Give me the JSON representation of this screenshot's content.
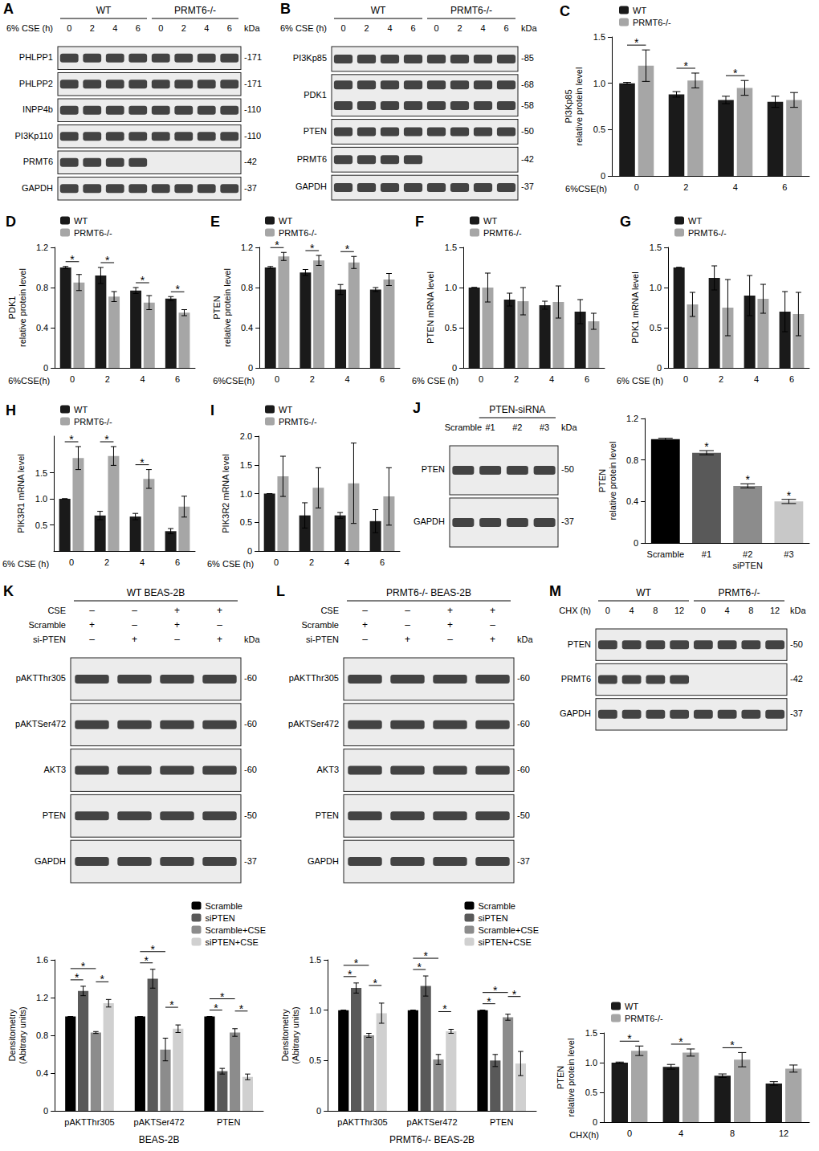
{
  "chart_data": [
    {
      "panel": "C",
      "type": "bar",
      "y_label": [
        "PI3Kp85",
        "relative protein level"
      ],
      "x_label": "6%CSE(h)",
      "categories": [
        "0",
        "2",
        "4",
        "6"
      ],
      "series": [
        {
          "name": "WT",
          "color": "#1a1a1a",
          "values": [
            1.0,
            0.88,
            0.82,
            0.8
          ],
          "errors": [
            0.01,
            0.03,
            0.04,
            0.06
          ]
        },
        {
          "name": "PRMT6-/-",
          "color": "#a6a6a6",
          "values": [
            1.19,
            1.03,
            0.95,
            0.82
          ],
          "errors": [
            0.17,
            0.08,
            0.08,
            0.08
          ]
        }
      ],
      "ylim": [
        0,
        1.5
      ],
      "yticks": [
        0,
        0.5,
        {
          "value": 1,
          "label": "1.0"
        },
        1.5
      ],
      "legend": "top-left",
      "significant": [
        0,
        1,
        2
      ],
      "annotation": "*"
    },
    {
      "panel": "D",
      "type": "bar",
      "y_label": [
        "PDK1",
        "relative protein level"
      ],
      "x_label": "6%CSE(h)",
      "categories": [
        "0",
        "2",
        "4",
        "6"
      ],
      "series": [
        {
          "name": "WT",
          "color": "#1a1a1a",
          "values": [
            1.0,
            0.92,
            0.77,
            0.69
          ],
          "errors": [
            0.01,
            0.08,
            0.03,
            0.02
          ]
        },
        {
          "name": "PRMT6-/-",
          "color": "#a6a6a6",
          "values": [
            0.85,
            0.71,
            0.65,
            0.55
          ],
          "errors": [
            0.08,
            0.05,
            0.07,
            0.03
          ]
        }
      ],
      "ylim": [
        0,
        1.2
      ],
      "yticks": [
        0,
        0.4,
        0.8,
        1.2
      ],
      "legend": "top-left",
      "significant": [
        0,
        1,
        2,
        3
      ],
      "annotation": "*"
    },
    {
      "panel": "E",
      "type": "bar",
      "y_label": [
        "PTEN",
        "relative protein level"
      ],
      "x_label": "6%CSE(h)",
      "categories": [
        "0",
        "2",
        "4",
        "6"
      ],
      "series": [
        {
          "name": "WT",
          "color": "#1a1a1a",
          "values": [
            1.0,
            0.95,
            0.78,
            0.78
          ],
          "errors": [
            0.01,
            0.03,
            0.05,
            0.02
          ]
        },
        {
          "name": "PRMT6-/-",
          "color": "#a6a6a6",
          "values": [
            1.11,
            1.07,
            1.05,
            0.88
          ],
          "errors": [
            0.04,
            0.05,
            0.06,
            0.06
          ]
        }
      ],
      "ylim": [
        0,
        1.2
      ],
      "yticks": [
        0,
        0.4,
        0.8,
        1.2
      ],
      "legend": "top-left",
      "significant": [
        0,
        1,
        2
      ],
      "annotation": "*"
    },
    {
      "panel": "F",
      "type": "bar",
      "y_label": [
        "PTEN mRNA level"
      ],
      "x_label": "6% CSE (h)",
      "categories": [
        "0",
        "2",
        "4",
        "6"
      ],
      "series": [
        {
          "name": "WT",
          "color": "#1a1a1a",
          "values": [
            1.0,
            0.85,
            0.78,
            0.7
          ],
          "errors": [
            0.0,
            0.08,
            0.05,
            0.15
          ]
        },
        {
          "name": "PRMT6-/-",
          "color": "#a6a6a6",
          "values": [
            1.0,
            0.83,
            0.82,
            0.58
          ],
          "errors": [
            0.18,
            0.17,
            0.2,
            0.1
          ]
        }
      ],
      "ylim": [
        0,
        1.5
      ],
      "yticks": [
        0,
        0.5,
        {
          "value": 1,
          "label": "1.0"
        },
        1.5
      ],
      "legend": "top-left"
    },
    {
      "panel": "G",
      "type": "bar",
      "y_label": [
        "PDK1 mRNA level"
      ],
      "x_label": "6% CSE (h)",
      "categories": [
        "0",
        "2",
        "4",
        "6"
      ],
      "series": [
        {
          "name": "WT",
          "color": "#1a1a1a",
          "values": [
            1.25,
            1.12,
            0.9,
            0.7
          ],
          "errors": [
            0.0,
            0.15,
            0.25,
            0.25
          ]
        },
        {
          "name": "PRMT6-/-",
          "color": "#a6a6a6",
          "values": [
            0.79,
            0.75,
            0.86,
            0.67
          ],
          "errors": [
            0.15,
            0.35,
            0.18,
            0.27
          ]
        }
      ],
      "ylim": [
        0,
        1.5
      ],
      "yticks": [
        0,
        0.5,
        {
          "value": 1,
          "label": "1.0"
        },
        1.5
      ],
      "legend": "top-left"
    },
    {
      "panel": "H",
      "type": "bar",
      "y_label": [
        "PIK3R1 mRNA level"
      ],
      "x_label": "6% CSE (h)",
      "categories": [
        "0",
        "2",
        "4",
        "6"
      ],
      "series": [
        {
          "name": "WT",
          "color": "#1a1a1a",
          "values": [
            1.0,
            0.68,
            0.66,
            0.38
          ],
          "errors": [
            0.0,
            0.08,
            0.06,
            0.05
          ]
        },
        {
          "name": "PRMT6-/-",
          "color": "#a6a6a6",
          "values": [
            1.78,
            1.82,
            1.38,
            0.85
          ],
          "errors": [
            0.22,
            0.18,
            0.18,
            0.2
          ]
        }
      ],
      "ylim": [
        0,
        2.2
      ],
      "yticks": [
        0.5,
        {
          "value": 1,
          "label": "1.0"
        },
        1.5
      ],
      "legend": "top-left",
      "significant": [
        0,
        1,
        2
      ],
      "annotation": "*"
    },
    {
      "panel": "I",
      "type": "bar",
      "y_label": [
        "PIK3R2 mRNA level"
      ],
      "x_label": "6% CSE (h)",
      "categories": [
        "0",
        "2",
        "4",
        "6"
      ],
      "series": [
        {
          "name": "WT",
          "color": "#1a1a1a",
          "values": [
            1.0,
            0.62,
            0.62,
            0.52
          ],
          "errors": [
            0.0,
            0.22,
            0.05,
            0.2
          ]
        },
        {
          "name": "PRMT6-/-",
          "color": "#a6a6a6",
          "values": [
            1.3,
            1.1,
            1.18,
            0.95
          ],
          "errors": [
            0.35,
            0.35,
            0.7,
            0.5
          ]
        }
      ],
      "ylim": [
        0,
        2.0
      ],
      "yticks": [
        0,
        0.5,
        {
          "value": 1,
          "label": "1.0"
        },
        1.5,
        {
          "value": 2,
          "label": "2.0"
        }
      ],
      "legend": "top-left"
    },
    {
      "panel": "J",
      "type": "bar",
      "y_label": [
        "PTEN",
        "relative protein level"
      ],
      "categories": [
        "Scramble",
        "#1",
        "#2",
        "#3"
      ],
      "group_label": {
        "text": "siPTEN",
        "span": [
          1,
          3
        ]
      },
      "series": [
        {
          "colors": [
            "#000000",
            "#595959",
            "#8c8c8c",
            "#c8c8c8"
          ],
          "values": [
            1.0,
            0.87,
            0.55,
            0.4
          ],
          "errors": [
            0.01,
            0.02,
            0.02,
            0.02
          ]
        }
      ],
      "ylim": [
        0,
        1.2
      ],
      "yticks": [
        0,
        0.4,
        0.8,
        1.2
      ],
      "significant": [
        1,
        2,
        3
      ],
      "annotation": "*"
    },
    {
      "panel": "K",
      "type": "bar",
      "y_label": [
        "Densitometry",
        "(Abitrary units)"
      ],
      "x_label": "BEAS-2B",
      "categories": [
        "pAKTThr305",
        "pAKTSer472",
        "PTEN"
      ],
      "series": [
        {
          "name": "Scramble",
          "color": "#000000",
          "values": [
            1.0,
            1.0,
            1.0
          ],
          "errors": [
            0.0,
            0.0,
            0.0
          ]
        },
        {
          "name": "siPTEN",
          "color": "#595959",
          "values": [
            1.27,
            1.4,
            0.42
          ],
          "errors": [
            0.05,
            0.1,
            0.03
          ]
        },
        {
          "name": "Scramble+CSE",
          "color": "#8c8c8c",
          "values": [
            0.83,
            0.65,
            0.83
          ],
          "errors": [
            0.01,
            0.12,
            0.04
          ]
        },
        {
          "name": "siPTEN+CSE",
          "color": "#d0d0d0",
          "values": [
            1.14,
            0.87,
            0.36
          ],
          "errors": [
            0.04,
            0.04,
            0.03
          ]
        }
      ],
      "ylim": [
        0,
        1.6
      ],
      "yticks": [
        0,
        0.4,
        0.8,
        1.2,
        1.6
      ],
      "legend": "top-right",
      "comparisons": [
        [
          0,
          0,
          1
        ],
        [
          0,
          0,
          2
        ],
        [
          0,
          2,
          3
        ],
        [
          1,
          0,
          1
        ],
        [
          1,
          0,
          2
        ],
        [
          1,
          2,
          3
        ],
        [
          2,
          0,
          1
        ],
        [
          2,
          0,
          2
        ],
        [
          2,
          2,
          3
        ]
      ],
      "annotation": "*"
    },
    {
      "panel": "L",
      "type": "bar",
      "y_label": [
        "Densitometry",
        "(Abitrary units)"
      ],
      "x_label": "PRMT6-/- BEAS-2B",
      "categories": [
        "pAKTThr305",
        "pAKTSer472",
        "PTEN"
      ],
      "series": [
        {
          "name": "Scramble",
          "color": "#000000",
          "values": [
            1.0,
            1.0,
            1.0
          ],
          "errors": [
            0.0,
            0.0,
            0.0
          ]
        },
        {
          "name": "siPTEN",
          "color": "#595959",
          "values": [
            1.22,
            1.24,
            0.5
          ],
          "errors": [
            0.05,
            0.1,
            0.06
          ]
        },
        {
          "name": "Scramble+CSE",
          "color": "#8c8c8c",
          "values": [
            0.75,
            0.51,
            0.93
          ],
          "errors": [
            0.02,
            0.05,
            0.03
          ]
        },
        {
          "name": "siPTEN+CSE",
          "color": "#d0d0d0",
          "values": [
            0.97,
            0.79,
            0.47
          ],
          "errors": [
            0.1,
            0.02,
            0.12
          ]
        }
      ],
      "ylim": [
        0,
        1.5
      ],
      "yticks": [
        0,
        0.5,
        {
          "value": 1,
          "label": "1.0"
        },
        1.5
      ],
      "legend": "top-right",
      "comparisons": [
        [
          0,
          0,
          1
        ],
        [
          0,
          0,
          2
        ],
        [
          0,
          2,
          3
        ],
        [
          1,
          0,
          1
        ],
        [
          1,
          0,
          2
        ],
        [
          1,
          2,
          3
        ],
        [
          2,
          0,
          1
        ],
        [
          2,
          0,
          2
        ],
        [
          2,
          2,
          3
        ]
      ],
      "annotation": "*"
    },
    {
      "panel": "M",
      "type": "bar",
      "y_label": [
        "PTEN",
        "relative protein level"
      ],
      "x_label": "CHX(h)",
      "categories": [
        "0",
        "4",
        "8",
        "12"
      ],
      "series": [
        {
          "name": "WT",
          "color": "#1a1a1a",
          "values": [
            1.0,
            0.93,
            0.78,
            0.65
          ],
          "errors": [
            0.01,
            0.04,
            0.03,
            0.03
          ]
        },
        {
          "name": "PRMT6-/-",
          "color": "#a6a6a6",
          "values": [
            1.2,
            1.17,
            1.05,
            0.9
          ],
          "errors": [
            0.08,
            0.06,
            0.12,
            0.06
          ]
        }
      ],
      "ylim": [
        0,
        1.5
      ],
      "yticks": [
        0,
        0.5,
        {
          "value": 1,
          "label": "1.0"
        },
        1.5
      ],
      "legend": "top-left",
      "significant": [
        0,
        1,
        2
      ],
      "annotation": "*"
    }
  ],
  "blots": [
    {
      "panel": "A",
      "groups": [
        {
          "label": "WT",
          "span": [
            0,
            3
          ]
        },
        {
          "label": "PRMT6-/-",
          "span": [
            4,
            7
          ]
        }
      ],
      "header": "6% CSE (h)",
      "lanes": [
        "0",
        "2",
        "4",
        "6",
        "0",
        "2",
        "4",
        "6"
      ],
      "unit": "kDa",
      "rows": [
        {
          "label": "PHLPP1",
          "kda": [
            "-171"
          ]
        },
        {
          "label": "PHLPP2",
          "kda": [
            "-171"
          ]
        },
        {
          "label": "INPP4b",
          "kda": [
            "-110"
          ]
        },
        {
          "label": "PI3Kp110",
          "kda": [
            "-110"
          ]
        },
        {
          "label": "PRMT6",
          "kda": [
            "-42"
          ],
          "empty": [
            4,
            5,
            6,
            7
          ]
        },
        {
          "label": "GAPDH",
          "kda": [
            "-37"
          ]
        }
      ]
    },
    {
      "panel": "B",
      "groups": [
        {
          "label": "WT",
          "span": [
            0,
            3
          ]
        },
        {
          "label": "PRMT6-/-",
          "span": [
            4,
            7
          ]
        }
      ],
      "header": "6% CSE (h)",
      "lanes": [
        "0",
        "2",
        "4",
        "6",
        "0",
        "2",
        "4",
        "6"
      ],
      "unit": "kDa",
      "rows": [
        {
          "label": "PI3Kp85",
          "kda": [
            "-85"
          ]
        },
        {
          "label": "PDK1",
          "kda": [
            "-68",
            "-58"
          ]
        },
        {
          "label": "PTEN",
          "kda": [
            "-50"
          ]
        },
        {
          "label": "PRMT6",
          "kda": [
            "-42"
          ],
          "empty": [
            4,
            5,
            6,
            7
          ]
        },
        {
          "label": "GAPDH",
          "kda": [
            "-37"
          ]
        }
      ]
    },
    {
      "panel": "J",
      "groups": [
        {
          "label": "PTEN-siRNA",
          "span": [
            1,
            3
          ]
        }
      ],
      "lanes": [
        "Scramble",
        "#1",
        "#2",
        "#3"
      ],
      "unit": "kDa",
      "rows": [
        {
          "label": "PTEN",
          "kda": [
            "-50"
          ]
        },
        {
          "label": "GAPDH",
          "kda": [
            "-37"
          ]
        }
      ]
    },
    {
      "panel": "K",
      "title": "WT BEAS-2B",
      "unit": "kDa",
      "conditions": [
        {
          "label": "CSE",
          "signs": [
            "–",
            "–",
            "+",
            "+"
          ]
        },
        {
          "label": "Scramble",
          "signs": [
            "+",
            "–",
            "+",
            "–"
          ]
        },
        {
          "label": "si-PTEN",
          "signs": [
            "–",
            "+",
            "–",
            "+"
          ]
        }
      ],
      "rows": [
        {
          "label": "pAKTThr305",
          "kda": [
            "-60"
          ]
        },
        {
          "label": "pAKTSer472",
          "kda": [
            "-60"
          ]
        },
        {
          "label": "AKT3",
          "kda": [
            "-60"
          ]
        },
        {
          "label": "PTEN",
          "kda": [
            "-50"
          ]
        },
        {
          "label": "GAPDH",
          "kda": [
            "-37"
          ]
        }
      ]
    },
    {
      "panel": "L",
      "title": "PRMT6-/- BEAS-2B",
      "unit": "kDa",
      "conditions": [
        {
          "label": "CSE",
          "signs": [
            "–",
            "–",
            "+",
            "+"
          ]
        },
        {
          "label": "Scramble",
          "signs": [
            "+",
            "–",
            "+",
            "–"
          ]
        },
        {
          "label": "si-PTEN",
          "signs": [
            "–",
            "+",
            "–",
            "+"
          ]
        }
      ],
      "rows": [
        {
          "label": "pAKTThr305",
          "kda": [
            "-60"
          ]
        },
        {
          "label": "pAKTSer472",
          "kda": [
            "-60"
          ]
        },
        {
          "label": "AKT3",
          "kda": [
            "-60"
          ]
        },
        {
          "label": "PTEN",
          "kda": [
            "-50"
          ]
        },
        {
          "label": "GAPDH",
          "kda": [
            "-37"
          ]
        }
      ]
    },
    {
      "panel": "M",
      "groups": [
        {
          "label": "WT",
          "span": [
            0,
            3
          ]
        },
        {
          "label": "PRMT6-/-",
          "span": [
            4,
            7
          ]
        }
      ],
      "header": "CHX (h)",
      "lanes": [
        "0",
        "4",
        "8",
        "12",
        "0",
        "4",
        "8",
        "12"
      ],
      "unit": "kDa",
      "rows": [
        {
          "label": "PTEN",
          "kda": [
            "-50"
          ]
        },
        {
          "label": "PRMT6",
          "kda": [
            "-42"
          ],
          "empty": [
            4,
            5,
            6,
            7
          ]
        },
        {
          "label": "GAPDH",
          "kda": [
            "-37"
          ]
        }
      ]
    }
  ]
}
